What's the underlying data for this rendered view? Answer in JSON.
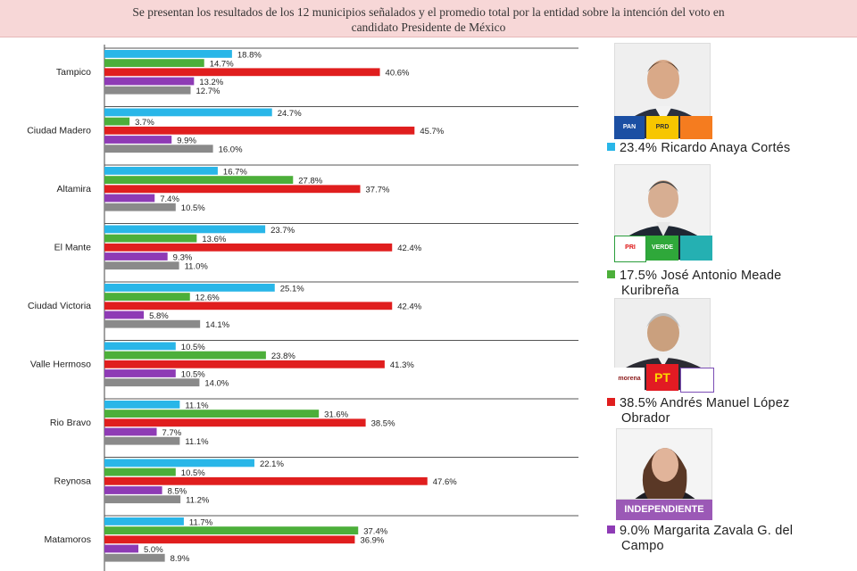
{
  "header": {
    "line1": "Se presentan los resultados de los 12 municipios señalados y el promedio total por la entidad sobre la intención del voto en",
    "line2": "candidato Presidente de México"
  },
  "chart_data": {
    "type": "bar",
    "orientation": "horizontal",
    "categories": [
      "Tampico",
      "Ciudad Madero",
      "Altamira",
      "El Mante",
      "Ciudad Victoria",
      "Valle Hermoso",
      "Rio Bravo",
      "Reynosa",
      "Matamoros"
    ],
    "series": [
      {
        "color": "#29b6e8",
        "values": [
          18.8,
          24.7,
          16.7,
          23.7,
          25.1,
          10.5,
          11.1,
          22.1,
          11.7
        ],
        "labels": [
          "18.8%",
          "24.7%",
          "16.7%",
          "23.7%",
          "25.1%",
          "10.5%",
          "11.1%",
          "22.1%",
          "11.7%"
        ]
      },
      {
        "color": "#4caf3a",
        "values": [
          14.7,
          3.7,
          27.8,
          13.6,
          12.6,
          23.8,
          31.6,
          10.5,
          37.4
        ],
        "labels": [
          "14.7%",
          "3.7%",
          "27.8%",
          "13.6%",
          "12.6%",
          "23.8%",
          "31.6%",
          "10.5%",
          "37.4%"
        ]
      },
      {
        "color": "#e01e1e",
        "values": [
          40.6,
          45.7,
          37.7,
          42.4,
          42.4,
          41.3,
          38.5,
          47.6,
          36.9
        ],
        "labels": [
          "40.6%",
          "45.7%",
          "37.7%",
          "42.4%",
          "42.4%",
          "41.3%",
          "38.5%",
          "47.6%",
          "36.9%"
        ]
      },
      {
        "color": "#8e3bb5",
        "values": [
          13.2,
          9.9,
          7.4,
          9.3,
          5.8,
          10.5,
          7.7,
          8.5,
          5.0
        ],
        "labels": [
          "13.2%",
          "9.9%",
          "7.4%",
          "9.3%",
          "5.8%",
          "10.5%",
          "7.7%",
          "8.5%",
          "5.0%"
        ]
      },
      {
        "color": "#8a8a8a",
        "values": [
          12.7,
          16.0,
          10.5,
          11.0,
          14.1,
          14.0,
          11.1,
          11.2,
          8.9
        ],
        "labels": [
          "12.7%",
          "16.0%",
          "10.5%",
          "11.0%",
          "14.1%",
          "14.0%",
          "11.1%",
          "11.2%",
          "8.9%"
        ]
      }
    ],
    "xlim": [
      0,
      50
    ],
    "grid": false
  },
  "legend": {
    "items": [
      {
        "text": "23.4% Ricardo Anaya Cortés",
        "color": "#29b6e8"
      },
      {
        "text": "17.5% José Antonio Meade Kuribreña",
        "line1": "17.5% José Antonio Meade",
        "line2": "Kuribreña",
        "color": "#4caf3a"
      },
      {
        "text": "38.5% Andrés Manuel López Obrador",
        "line1": "38.5% Andrés Manuel López",
        "line2": "Obrador",
        "color": "#e01e1e"
      },
      {
        "text": "9.0% Margarita Zavala G. del Campo",
        "line1": "9.0% Margarita Zavala G. del",
        "line2": "Campo",
        "color": "#8e3bb5"
      }
    ],
    "badges": {
      "pan": "PAN",
      "prd": "PRD",
      "pri": "PRI",
      "verde": "VERDE",
      "pt": "PT",
      "morena": "morena",
      "independiente": "INDEPENDIENTE"
    }
  }
}
